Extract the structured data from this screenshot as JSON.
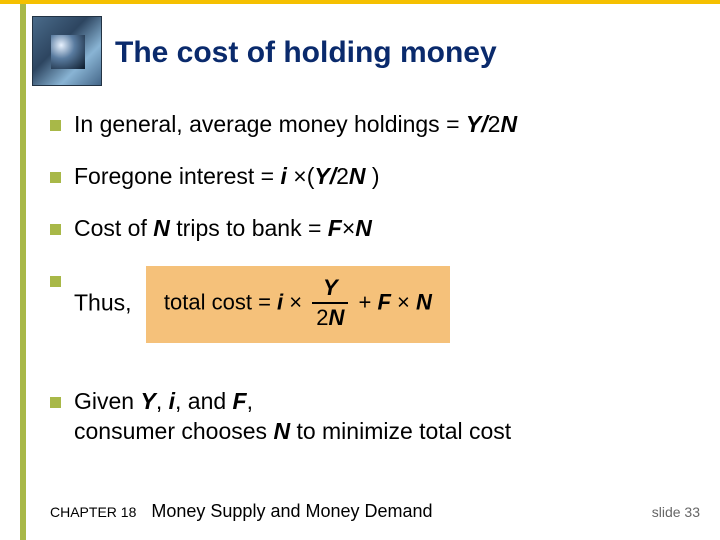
{
  "colors": {
    "top_bar": "#f5c000",
    "left_bar": "#a8b848",
    "title": "#0a2a6c",
    "formula_bg": "#f5c17a",
    "text": "#000000",
    "slide_no": "#666666"
  },
  "title": "The cost of holding money",
  "bullets": {
    "b1_pre": "In general, average money holdings = ",
    "b1_var": "Y/",
    "b1_post1": "2",
    "b1_post2": "N",
    "b2_pre": "Foregone interest = ",
    "b2_i": "i ",
    "b2_mult": "×(",
    "b2_y": "Y/",
    "b2_2": "2",
    "b2_n": "N ",
    "b2_close": ")",
    "b3_pre": "Cost of ",
    "b3_n": "N",
    "b3_mid": "  trips to bank = ",
    "b3_f": "F",
    "b3_mult": "×",
    "b3_n2": "N",
    "b4": "Thus,",
    "b5_pre": "Given ",
    "b5_y": "Y",
    "b5_c1": ", ",
    "b5_i": "i",
    "b5_c2": ", and ",
    "b5_f": "F",
    "b5_c3": ",",
    "b5_line2a": "consumer chooses ",
    "b5_n": "N",
    "b5_line2b": "  to minimize total cost"
  },
  "formula": {
    "label": "total cost",
    "eq": "  =  ",
    "i": "i",
    "mult1": " × ",
    "num": "Y",
    "den_2": "2",
    "den_n": "N",
    "plus": "  +  ",
    "f": "F",
    "mult2": " × ",
    "n": "N"
  },
  "footer": {
    "chapter": "CHAPTER 18",
    "subject": "Money Supply and Money Demand",
    "slide_label": "slide ",
    "slide_no": "33"
  }
}
